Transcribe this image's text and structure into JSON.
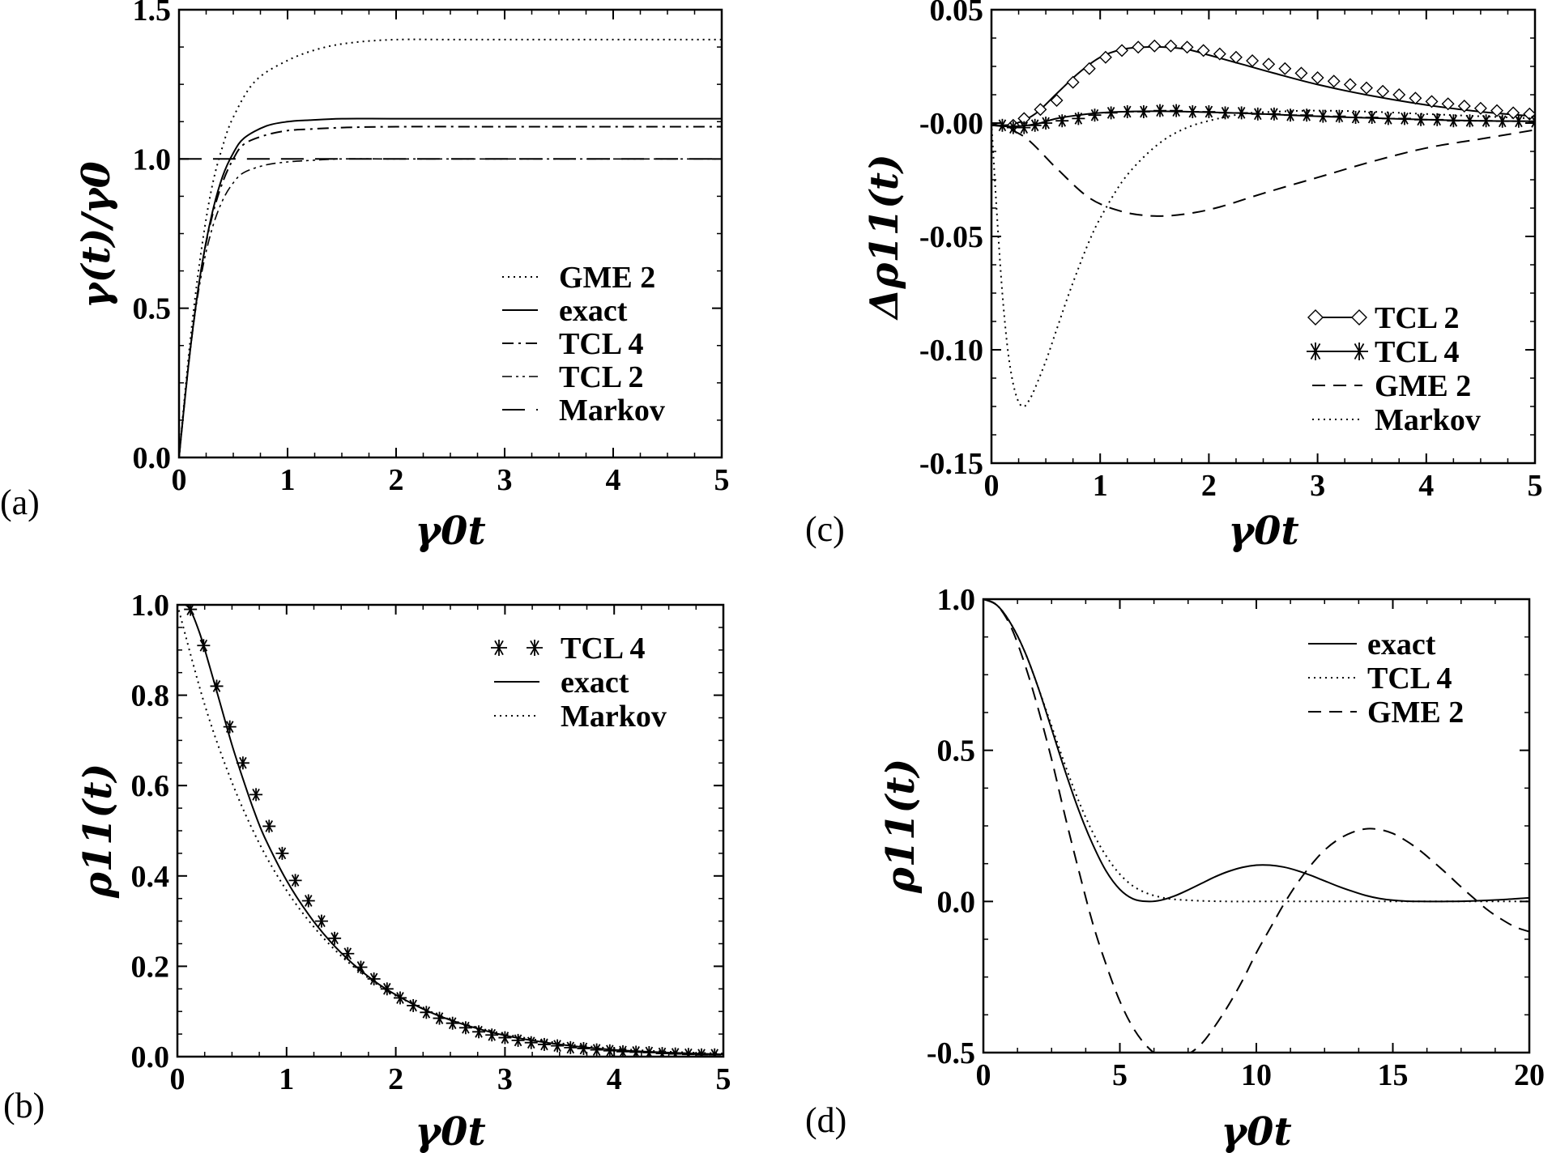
{
  "chart_data": [
    {
      "panel": "(a)",
      "type": "line",
      "xlabel": "γ0t",
      "ylabel": "γ(t)/γ0",
      "xlim": [
        0,
        5
      ],
      "ylim": [
        0,
        1.5
      ],
      "xticks": [
        "0",
        "1",
        "2",
        "3",
        "4",
        "5"
      ],
      "yticks": [
        "0.0",
        "0.5",
        "1.0",
        "1.5"
      ],
      "legend_position": "bottom-right",
      "series": [
        {
          "name": "GME 2",
          "style": "dotted",
          "x": [
            0,
            0.1,
            0.2,
            0.3,
            0.4,
            0.5,
            0.7,
            1.0,
            1.3,
            1.6,
            2.0,
            2.5,
            3.0,
            4.0,
            5.0
          ],
          "y": [
            0,
            0.38,
            0.68,
            0.9,
            1.04,
            1.14,
            1.26,
            1.33,
            1.37,
            1.39,
            1.4,
            1.4,
            1.4,
            1.4,
            1.4
          ]
        },
        {
          "name": "exact",
          "style": "solid",
          "x": [
            0,
            0.1,
            0.2,
            0.3,
            0.4,
            0.5,
            0.6,
            0.8,
            1.0,
            1.2,
            1.5,
            2.0,
            3.0,
            4.0,
            5.0
          ],
          "y": [
            0,
            0.35,
            0.62,
            0.81,
            0.94,
            1.02,
            1.07,
            1.11,
            1.125,
            1.13,
            1.135,
            1.135,
            1.135,
            1.135,
            1.135
          ]
        },
        {
          "name": "TCL 4",
          "style": "dashdot",
          "x": [
            0,
            0.1,
            0.2,
            0.3,
            0.4,
            0.5,
            0.6,
            0.8,
            1.0,
            1.2,
            1.5,
            2.0,
            3.0,
            4.0,
            5.0
          ],
          "y": [
            0,
            0.35,
            0.62,
            0.8,
            0.92,
            1.0,
            1.05,
            1.08,
            1.095,
            1.1,
            1.105,
            1.108,
            1.108,
            1.108,
            1.108
          ]
        },
        {
          "name": "TCL 2",
          "style": "dashdotdot",
          "x": [
            0,
            0.1,
            0.2,
            0.3,
            0.4,
            0.5,
            0.6,
            0.8,
            1.0,
            1.2,
            1.5,
            2.0,
            3.0,
            4.0,
            5.0
          ],
          "y": [
            0,
            0.35,
            0.6,
            0.76,
            0.86,
            0.92,
            0.955,
            0.98,
            0.99,
            0.995,
            1.0,
            1.0,
            1.0,
            1.0,
            1.0
          ]
        },
        {
          "name": "Markov",
          "style": "longdash",
          "x": [
            0,
            5
          ],
          "y": [
            1.0,
            1.0
          ]
        }
      ]
    },
    {
      "panel": "(b)",
      "type": "line",
      "xlabel": "γ0t",
      "ylabel": "ρ11(t)",
      "xlim": [
        0,
        5
      ],
      "ylim": [
        0,
        1.0
      ],
      "xticks": [
        "0",
        "1",
        "2",
        "3",
        "4",
        "5"
      ],
      "yticks": [
        "0.0",
        "0.2",
        "0.4",
        "0.6",
        "0.8",
        "1.0"
      ],
      "legend_position": "top-right",
      "series": [
        {
          "name": "TCL 4",
          "style": "asterisk",
          "x": [
            0.12,
            0.24,
            0.36,
            0.48,
            0.6,
            0.72,
            0.84,
            0.96,
            1.08,
            1.2,
            1.32,
            1.44,
            1.56,
            1.68,
            1.8,
            1.92,
            2.04,
            2.16,
            2.28,
            2.4,
            2.52,
            2.64,
            2.76,
            2.88,
            3.0,
            3.12,
            3.24,
            3.36,
            3.48,
            3.6,
            3.72,
            3.84,
            3.96,
            4.08,
            4.2,
            4.32,
            4.44,
            4.56,
            4.68,
            4.8,
            4.92
          ],
          "y": [
            0.99,
            0.91,
            0.82,
            0.73,
            0.65,
            0.58,
            0.51,
            0.45,
            0.39,
            0.345,
            0.3,
            0.262,
            0.228,
            0.198,
            0.172,
            0.15,
            0.13,
            0.113,
            0.098,
            0.085,
            0.074,
            0.064,
            0.055,
            0.048,
            0.042,
            0.036,
            0.031,
            0.027,
            0.024,
            0.02,
            0.018,
            0.015,
            0.013,
            0.011,
            0.01,
            0.009,
            0.007,
            0.006,
            0.005,
            0.004,
            0.004
          ]
        },
        {
          "name": "exact",
          "style": "solid",
          "x": [
            0,
            0.1,
            0.2,
            0.3,
            0.4,
            0.5,
            0.6,
            0.7,
            0.8,
            1.0,
            1.2,
            1.4,
            1.6,
            1.8,
            2.0,
            2.3,
            2.6,
            3.0,
            3.5,
            4.0,
            4.5,
            5.0
          ],
          "y": [
            1.0,
            0.995,
            0.94,
            0.86,
            0.775,
            0.69,
            0.615,
            0.545,
            0.485,
            0.39,
            0.315,
            0.255,
            0.207,
            0.168,
            0.137,
            0.1,
            0.073,
            0.047,
            0.027,
            0.015,
            0.009,
            0.005
          ]
        },
        {
          "name": "Markov",
          "style": "dotted",
          "x": [
            0,
            0.25,
            0.5,
            0.75,
            1.0,
            1.25,
            1.5,
            1.75,
            2.0,
            2.5,
            3.0,
            3.5,
            4.0,
            4.5,
            5.0
          ],
          "y": [
            1.0,
            0.779,
            0.607,
            0.472,
            0.368,
            0.287,
            0.223,
            0.174,
            0.135,
            0.082,
            0.05,
            0.03,
            0.018,
            0.011,
            0.007
          ]
        }
      ]
    },
    {
      "panel": "(c)",
      "type": "line",
      "xlabel": "γ0t",
      "ylabel": "Δρ11(t)",
      "xlim": [
        0,
        5
      ],
      "ylim": [
        -0.15,
        0.05
      ],
      "xticks": [
        "0",
        "1",
        "2",
        "3",
        "4",
        "5"
      ],
      "yticks": [
        "-0.15",
        "-0.10",
        "-0.05",
        "-0.00",
        "0.05"
      ],
      "legend_position": "bottom-right",
      "series": [
        {
          "name": "TCL 2",
          "style": "solid-diamond",
          "x": [
            0,
            0.2,
            0.4,
            0.6,
            0.8,
            1.0,
            1.2,
            1.4,
            1.6,
            1.8,
            2.0,
            2.3,
            2.6,
            3.0,
            3.5,
            4.0,
            4.5,
            5.0
          ],
          "y": [
            -0.001,
            -0.0005,
            0.004,
            0.013,
            0.022,
            0.029,
            0.0325,
            0.0335,
            0.0335,
            0.0325,
            0.03,
            0.026,
            0.022,
            0.017,
            0.012,
            0.008,
            0.005,
            0.003
          ],
          "markers_x": [
            0.2,
            0.3,
            0.45,
            0.6,
            0.75,
            0.9,
            1.05,
            1.2,
            1.35,
            1.5,
            1.65,
            1.8,
            1.95,
            2.1,
            2.25,
            2.4,
            2.55,
            2.7,
            2.85,
            3.0,
            3.15,
            3.3,
            3.45,
            3.6,
            3.75,
            3.9,
            4.05,
            4.2,
            4.35,
            4.5,
            4.65,
            4.8,
            4.95
          ],
          "markers_y": [
            -0.001,
            0.002,
            0.006,
            0.01,
            0.018,
            0.024,
            0.029,
            0.032,
            0.0335,
            0.034,
            0.034,
            0.0335,
            0.032,
            0.0305,
            0.029,
            0.0275,
            0.026,
            0.024,
            0.022,
            0.02,
            0.0185,
            0.017,
            0.0155,
            0.014,
            0.0125,
            0.011,
            0.0095,
            0.0085,
            0.0075,
            0.0065,
            0.0055,
            0.0045,
            0.004
          ]
        },
        {
          "name": "TCL 4",
          "style": "solid-asterisk",
          "x": [
            0,
            0.2,
            0.4,
            0.6,
            0.8,
            1.0,
            1.2,
            1.5,
            2.0,
            2.5,
            3.0,
            3.5,
            4.0,
            4.5,
            5.0
          ],
          "y": [
            -0.001,
            -0.0015,
            -0.0005,
            0.002,
            0.0035,
            0.0045,
            0.005,
            0.0052,
            0.0048,
            0.004,
            0.003,
            0.0022,
            0.0015,
            0.001,
            0.0008
          ],
          "markers_x": [
            0.1,
            0.2,
            0.3,
            0.4,
            0.5,
            0.65,
            0.8,
            0.95,
            1.1,
            1.25,
            1.4,
            1.55,
            1.7,
            1.85,
            2.0,
            2.15,
            2.3,
            2.45,
            2.6,
            2.75,
            2.9,
            3.05,
            3.2,
            3.35,
            3.5,
            3.65,
            3.8,
            3.95,
            4.1,
            4.25,
            4.4,
            4.55,
            4.7,
            4.85,
            5.0
          ],
          "markers_y": [
            -0.001,
            -0.002,
            -0.002,
            -0.001,
            0.0,
            0.001,
            0.002,
            0.0035,
            0.0045,
            0.005,
            0.005,
            0.0055,
            0.0055,
            0.005,
            0.005,
            0.0045,
            0.0045,
            0.004,
            0.004,
            0.0035,
            0.0035,
            0.003,
            0.003,
            0.0025,
            0.0025,
            0.002,
            0.002,
            0.0015,
            0.0015,
            0.001,
            0.001,
            0.001,
            0.0008,
            0.0008,
            0.0006
          ]
        },
        {
          "name": "GME 2",
          "style": "dashed",
          "x": [
            0,
            0.3,
            0.6,
            0.9,
            1.2,
            1.5,
            1.8,
            2.1,
            2.5,
            3.0,
            3.5,
            4.0,
            4.5,
            5.0
          ],
          "y": [
            0,
            -0.006,
            -0.02,
            -0.033,
            -0.039,
            -0.041,
            -0.04,
            -0.037,
            -0.031,
            -0.024,
            -0.017,
            -0.011,
            -0.007,
            -0.003
          ]
        },
        {
          "name": "Markov",
          "style": "dotted",
          "x": [
            0,
            0.05,
            0.1,
            0.15,
            0.2,
            0.25,
            0.3,
            0.35,
            0.4,
            0.5,
            0.6,
            0.7,
            0.8,
            0.9,
            1.0,
            1.2,
            1.4,
            1.6,
            1.8,
            2.0,
            2.3,
            2.6,
            3.0,
            3.5,
            4.0,
            5.0
          ],
          "y": [
            0,
            -0.04,
            -0.075,
            -0.1,
            -0.115,
            -0.123,
            -0.125,
            -0.122,
            -0.117,
            -0.105,
            -0.091,
            -0.077,
            -0.064,
            -0.052,
            -0.042,
            -0.026,
            -0.015,
            -0.007,
            -0.002,
            0.001,
            0.004,
            0.005,
            0.0055,
            0.005,
            0.004,
            0.002
          ]
        }
      ]
    },
    {
      "panel": "(d)",
      "type": "line",
      "xlabel": "γ0t",
      "ylabel": "ρ11(t)",
      "xlim": [
        0,
        20
      ],
      "ylim": [
        -0.5,
        1.0
      ],
      "xticks": [
        "0",
        "5",
        "10",
        "15",
        "20"
      ],
      "yticks": [
        "-0.5",
        "0.0",
        "0.5",
        "1.0"
      ],
      "legend_position": "top-right",
      "series": [
        {
          "name": "exact",
          "style": "solid",
          "x": [
            0,
            0.5,
            1.0,
            1.5,
            2.0,
            2.5,
            3.0,
            3.5,
            4.0,
            4.5,
            5.0,
            5.5,
            6.0,
            6.5,
            7.0,
            7.5,
            8.0,
            8.5,
            9.0,
            9.5,
            10.0,
            10.5,
            11.0,
            11.5,
            12.0,
            12.5,
            13.0,
            13.5,
            14.0,
            14.5,
            15.0,
            15.5,
            16.0,
            17.0,
            18.0,
            19.0,
            20.0
          ],
          "y": [
            1.0,
            0.98,
            0.92,
            0.83,
            0.71,
            0.57,
            0.43,
            0.3,
            0.19,
            0.1,
            0.04,
            0.008,
            0.0,
            0.004,
            0.018,
            0.038,
            0.06,
            0.082,
            0.1,
            0.113,
            0.12,
            0.12,
            0.114,
            0.102,
            0.086,
            0.068,
            0.05,
            0.034,
            0.02,
            0.01,
            0.004,
            0.001,
            0.0,
            0.0,
            0.002,
            0.006,
            0.012
          ]
        },
        {
          "name": "TCL 4",
          "style": "dotted",
          "x": [
            0,
            0.5,
            1.0,
            1.5,
            2.0,
            2.5,
            3.0,
            3.5,
            4.0,
            4.5,
            5.0,
            5.5,
            6.0,
            6.5,
            7.0,
            8.0,
            9.0,
            10.0,
            12.0,
            14.0,
            16.0,
            18.0,
            20.0
          ],
          "y": [
            1.0,
            0.98,
            0.92,
            0.83,
            0.71,
            0.58,
            0.45,
            0.33,
            0.23,
            0.15,
            0.09,
            0.05,
            0.027,
            0.014,
            0.007,
            0.002,
            0.0,
            0.0,
            0.0,
            0.0,
            0.0,
            0.0,
            0.0
          ]
        },
        {
          "name": "GME 2",
          "style": "dashed",
          "x": [
            0,
            0.5,
            1.0,
            1.5,
            2.0,
            2.5,
            3.0,
            3.5,
            4.0,
            4.5,
            5.0,
            5.5,
            6.0,
            6.5,
            7.0,
            7.5,
            8.0,
            8.5,
            9.0,
            9.5,
            10.0,
            10.5,
            11.0,
            11.5,
            12.0,
            12.5,
            13.0,
            13.5,
            14.0,
            14.5,
            15.0,
            15.5,
            16.0,
            16.5,
            17.0,
            17.5,
            18.0,
            18.5,
            19.0,
            19.5,
            20.0
          ],
          "y": [
            1.0,
            0.98,
            0.91,
            0.79,
            0.64,
            0.47,
            0.28,
            0.1,
            -0.07,
            -0.21,
            -0.33,
            -0.42,
            -0.48,
            -0.515,
            -0.52,
            -0.505,
            -0.47,
            -0.41,
            -0.34,
            -0.26,
            -0.17,
            -0.09,
            -0.01,
            0.06,
            0.12,
            0.17,
            0.205,
            0.228,
            0.24,
            0.238,
            0.225,
            0.2,
            0.168,
            0.13,
            0.09,
            0.048,
            0.008,
            -0.03,
            -0.06,
            -0.085,
            -0.1
          ]
        }
      ]
    }
  ]
}
